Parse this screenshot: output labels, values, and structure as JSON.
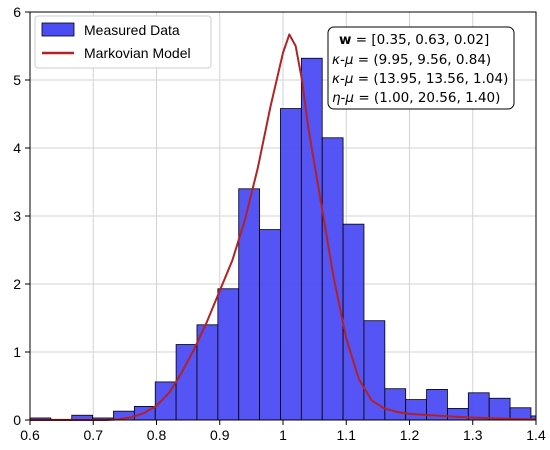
{
  "chart_data": {
    "type": "bar",
    "title": "",
    "xlabel": "",
    "ylabel": "",
    "xlim": [
      0.6,
      1.4
    ],
    "ylim": [
      0,
      6
    ],
    "x_ticks": [
      "0.6",
      "0.7",
      "0.8",
      "0.9",
      "1",
      "1.1",
      "1.2",
      "1.3",
      "1.4"
    ],
    "y_ticks": [
      "0",
      "1",
      "2",
      "3",
      "4",
      "5",
      "6"
    ],
    "grid": true,
    "legend_position": "top-left",
    "series": [
      {
        "name": "Measured Data",
        "kind": "histogram",
        "color": "#4c4cf5",
        "bins": [
          {
            "x0": 0.6,
            "x1": 0.633,
            "value": 0.03
          },
          {
            "x0": 0.633,
            "x1": 0.666,
            "value": 0.01
          },
          {
            "x0": 0.666,
            "x1": 0.699,
            "value": 0.07
          },
          {
            "x0": 0.699,
            "x1": 0.732,
            "value": 0.03
          },
          {
            "x0": 0.732,
            "x1": 0.765,
            "value": 0.13
          },
          {
            "x0": 0.765,
            "x1": 0.798,
            "value": 0.2
          },
          {
            "x0": 0.798,
            "x1": 0.831,
            "value": 0.56
          },
          {
            "x0": 0.831,
            "x1": 0.864,
            "value": 1.11
          },
          {
            "x0": 0.864,
            "x1": 0.897,
            "value": 1.4
          },
          {
            "x0": 0.897,
            "x1": 0.93,
            "value": 1.93
          },
          {
            "x0": 0.93,
            "x1": 0.963,
            "value": 3.4
          },
          {
            "x0": 0.963,
            "x1": 0.996,
            "value": 2.8
          },
          {
            "x0": 0.996,
            "x1": 1.029,
            "value": 4.58
          },
          {
            "x0": 1.029,
            "x1": 1.062,
            "value": 5.32
          },
          {
            "x0": 1.062,
            "x1": 1.095,
            "value": 4.15
          },
          {
            "x0": 1.095,
            "x1": 1.128,
            "value": 2.88
          },
          {
            "x0": 1.128,
            "x1": 1.161,
            "value": 1.46
          },
          {
            "x0": 1.161,
            "x1": 1.194,
            "value": 0.46
          },
          {
            "x0": 1.194,
            "x1": 1.227,
            "value": 0.3
          },
          {
            "x0": 1.227,
            "x1": 1.26,
            "value": 0.45
          },
          {
            "x0": 1.26,
            "x1": 1.293,
            "value": 0.17
          },
          {
            "x0": 1.293,
            "x1": 1.326,
            "value": 0.4
          },
          {
            "x0": 1.326,
            "x1": 1.359,
            "value": 0.32
          },
          {
            "x0": 1.359,
            "x1": 1.392,
            "value": 0.18
          },
          {
            "x0": 1.392,
            "x1": 1.425,
            "value": 0.06
          }
        ]
      },
      {
        "name": "Markovian Model",
        "kind": "line",
        "color": "#b22222",
        "points": [
          [
            0.6,
            0.0
          ],
          [
            0.72,
            0.0
          ],
          [
            0.74,
            0.01
          ],
          [
            0.76,
            0.04
          ],
          [
            0.78,
            0.1
          ],
          [
            0.8,
            0.21
          ],
          [
            0.82,
            0.4
          ],
          [
            0.84,
            0.7
          ],
          [
            0.86,
            1.05
          ],
          [
            0.88,
            1.45
          ],
          [
            0.9,
            1.9
          ],
          [
            0.92,
            2.35
          ],
          [
            0.94,
            2.95
          ],
          [
            0.96,
            3.7
          ],
          [
            0.98,
            4.6
          ],
          [
            1.0,
            5.4
          ],
          [
            1.01,
            5.67
          ],
          [
            1.02,
            5.5
          ],
          [
            1.03,
            5.0
          ],
          [
            1.04,
            4.3
          ],
          [
            1.06,
            3.2
          ],
          [
            1.08,
            2.1
          ],
          [
            1.1,
            1.2
          ],
          [
            1.12,
            0.6
          ],
          [
            1.14,
            0.29
          ],
          [
            1.16,
            0.17
          ],
          [
            1.18,
            0.12
          ],
          [
            1.2,
            0.09
          ],
          [
            1.25,
            0.06
          ],
          [
            1.3,
            0.035
          ],
          [
            1.35,
            0.02
          ],
          [
            1.4,
            0.01
          ]
        ]
      }
    ],
    "annotation": {
      "lines": [
        {
          "bold_label": "w",
          "value": " = [0.35, 0.63, 0.02]"
        },
        {
          "label": "κ-μ",
          "value": " = (9.95, 9.56, 0.84)"
        },
        {
          "label": "κ-μ",
          "value": " = (13.95, 13.56, 1.04)"
        },
        {
          "label": "η-μ",
          "value": " = (1.00, 20.56, 1.40)"
        }
      ]
    }
  }
}
